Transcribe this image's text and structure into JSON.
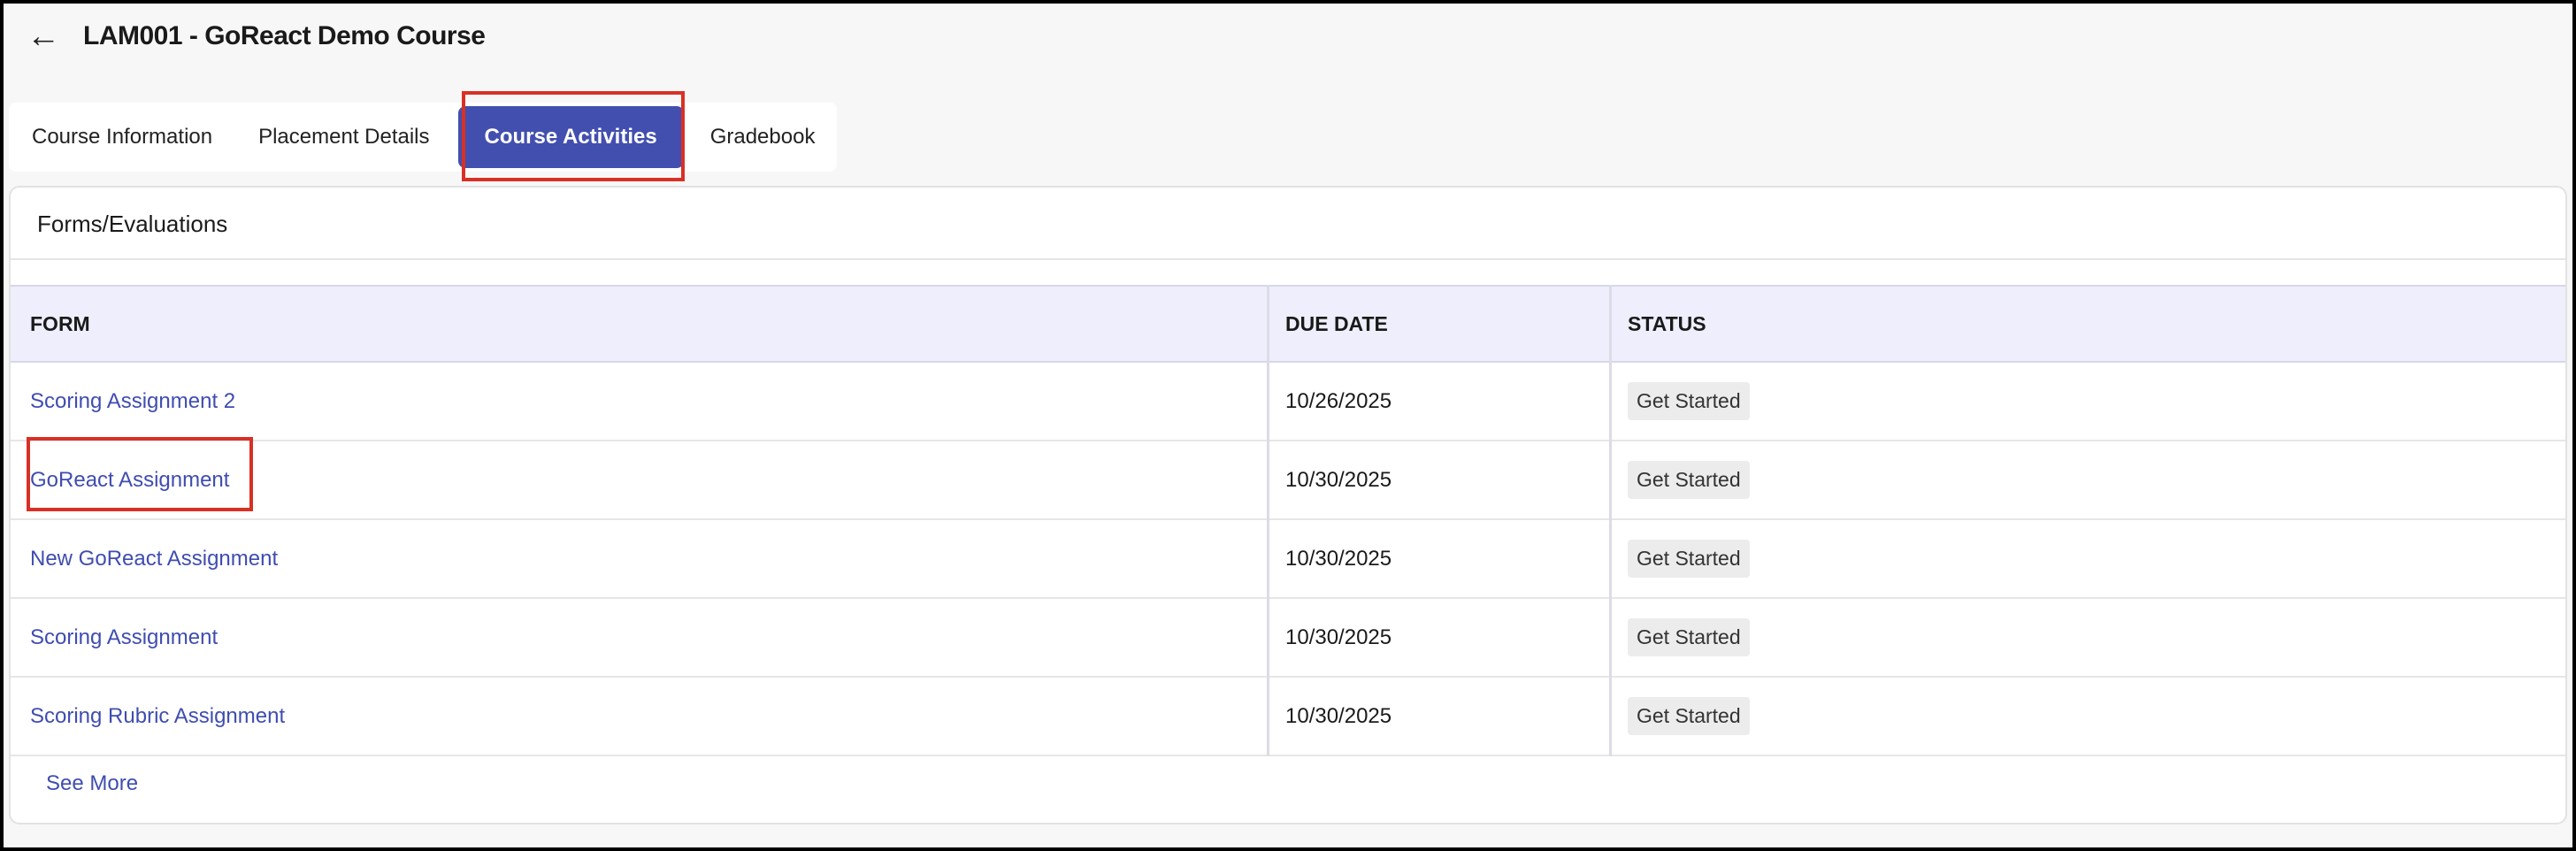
{
  "header": {
    "back_icon": "arrow-left-icon",
    "title": "LAM001 - GoReact Demo Course"
  },
  "tabs": [
    {
      "label": "Course Information"
    },
    {
      "label": "Placement Details"
    },
    {
      "label": "Course Activities",
      "active": true
    },
    {
      "label": "Gradebook"
    }
  ],
  "section": {
    "title": "Forms/Evaluations"
  },
  "table": {
    "columns": [
      "FORM",
      "DUE DATE",
      "STATUS"
    ],
    "rows": [
      {
        "form": "Scoring Assignment 2",
        "due": "10/26/2025",
        "status": "Get Started"
      },
      {
        "form": "GoReact Assignment",
        "due": "10/30/2025",
        "status": "Get Started"
      },
      {
        "form": "New GoReact Assignment",
        "due": "10/30/2025",
        "status": "Get Started"
      },
      {
        "form": "Scoring Assignment",
        "due": "10/30/2025",
        "status": "Get Started"
      },
      {
        "form": "Scoring Rubric Assignment",
        "due": "10/30/2025",
        "status": "Get Started"
      }
    ]
  },
  "see_more": "See More",
  "colors": {
    "accent": "#434faf",
    "link": "#3f4db0",
    "highlight": "#d93025",
    "header_bg": "#eeeefc"
  }
}
